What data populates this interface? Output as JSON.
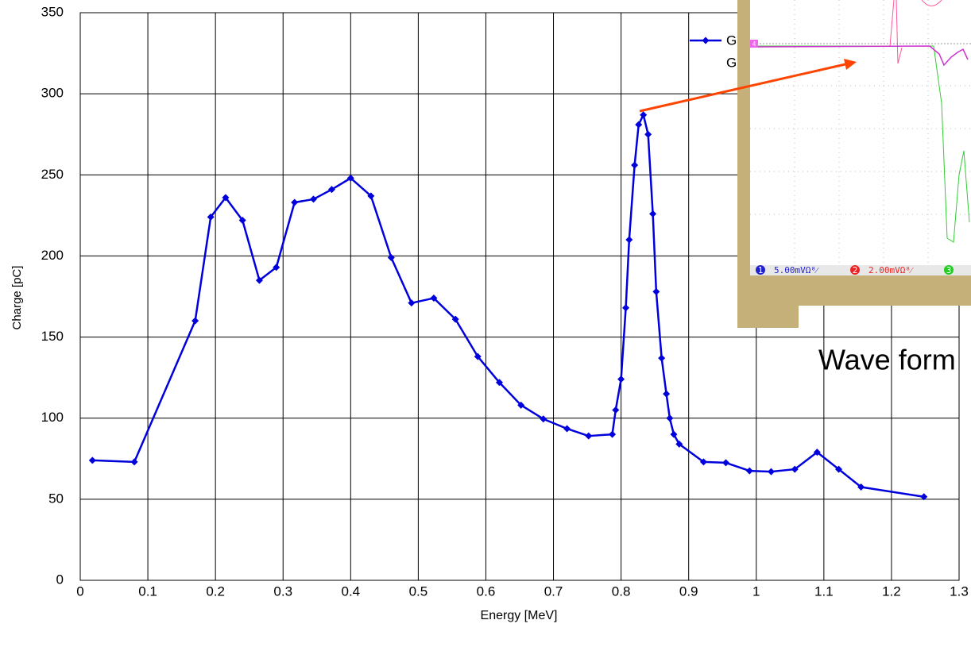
{
  "chart_data": {
    "type": "line",
    "x_label": "Energy [MeV]",
    "y_label": "Charge [pC]",
    "xlim": [
      0,
      1.3
    ],
    "xticks": [
      0,
      0.1,
      0.2,
      0.3,
      0.4,
      0.5,
      0.6,
      0.7,
      0.8,
      0.9,
      1,
      1.1,
      1.2,
      1.3
    ],
    "ylim": [
      0,
      350
    ],
    "yticks": [
      0,
      50,
      100,
      150,
      200,
      250,
      300,
      350
    ],
    "grid": true,
    "series": [
      {
        "name": "G",
        "color": "#0000dd",
        "x": [
          0.018,
          0.08,
          0.17,
          0.193,
          0.215,
          0.24,
          0.265,
          0.29,
          0.317,
          0.345,
          0.372,
          0.4,
          0.43,
          0.46,
          0.49,
          0.523,
          0.555,
          0.588,
          0.62,
          0.652,
          0.685,
          0.72,
          0.752,
          0.787,
          0.792,
          0.8,
          0.807,
          0.812,
          0.82,
          0.826,
          0.833,
          0.84,
          0.847,
          0.852,
          0.86,
          0.867,
          0.872,
          0.878,
          0.886,
          0.922,
          0.955,
          0.99,
          1.022,
          1.057,
          1.09,
          1.122,
          1.155,
          1.248
        ],
        "values": [
          74,
          73,
          160,
          224,
          236,
          222,
          185,
          193,
          233,
          235,
          241,
          248,
          237,
          199,
          171,
          174,
          161,
          138,
          122,
          108,
          99.5,
          93.5,
          89,
          90,
          105,
          124,
          168,
          210,
          256,
          281,
          287,
          275,
          226,
          178,
          137,
          115,
          100,
          90,
          84,
          73,
          72.5,
          67.5,
          67,
          68.5,
          79,
          68.5,
          57.5,
          51.5
        ]
      }
    ],
    "legend_second_line": "G"
  },
  "inset": {
    "caption": "Wave form",
    "channel_numbers": [
      "1",
      "2",
      "3"
    ],
    "channel_labels": [
      "5.00mVΩ⁸⁄",
      "2.00mVΩ⁸⁄"
    ],
    "marker_label": "4"
  }
}
